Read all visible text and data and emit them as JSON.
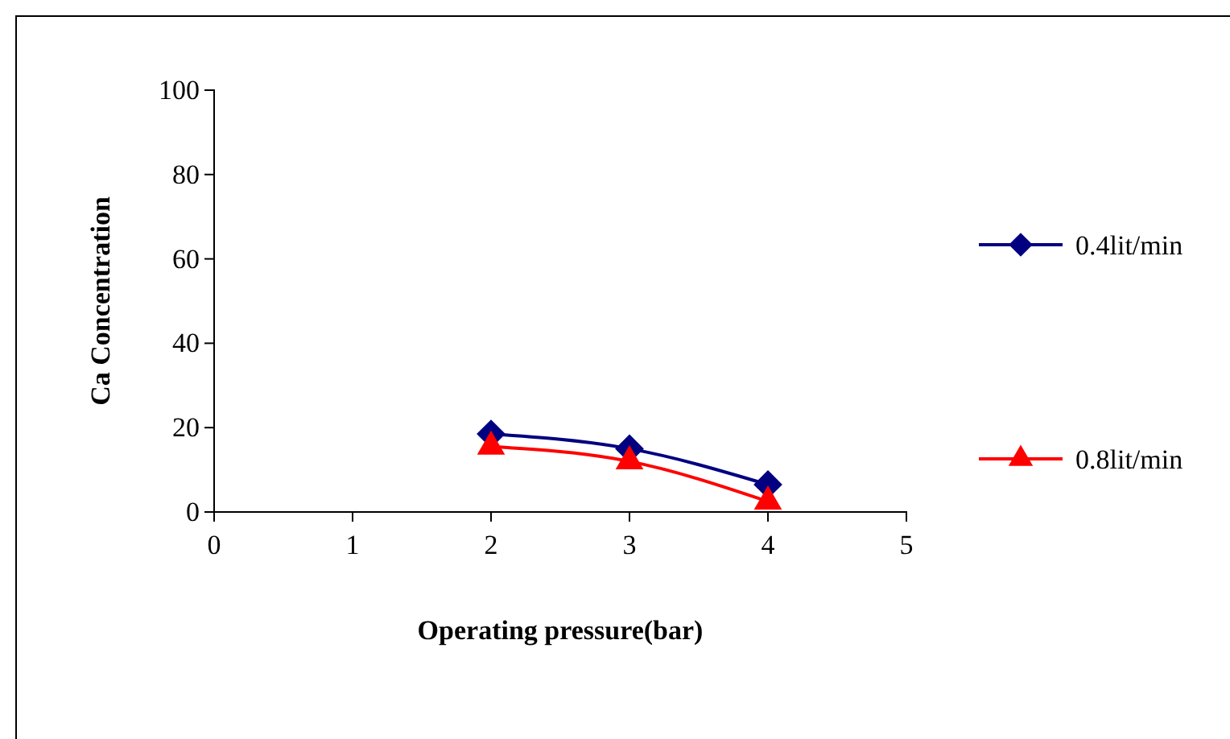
{
  "chart_data": {
    "type": "line",
    "xlabel": "Operating pressure(bar)",
    "ylabel": "Ca Concentration",
    "x": [
      2,
      3,
      4
    ],
    "series": [
      {
        "name": "0.4lit/min",
        "color": "#000080",
        "values": [
          18.5,
          15,
          6.5
        ],
        "marker": "diamond"
      },
      {
        "name": "0.8lit/min",
        "color": "#ff0000",
        "values": [
          15.5,
          12,
          2.5
        ],
        "marker": "triangle"
      }
    ],
    "xlim": [
      0,
      5
    ],
    "xticks": [
      0,
      1,
      2,
      3,
      4,
      5
    ],
    "ylim": [
      0,
      100
    ],
    "yticks": [
      0,
      20,
      40,
      60,
      80,
      100
    ],
    "legend": "right",
    "grid": false
  }
}
